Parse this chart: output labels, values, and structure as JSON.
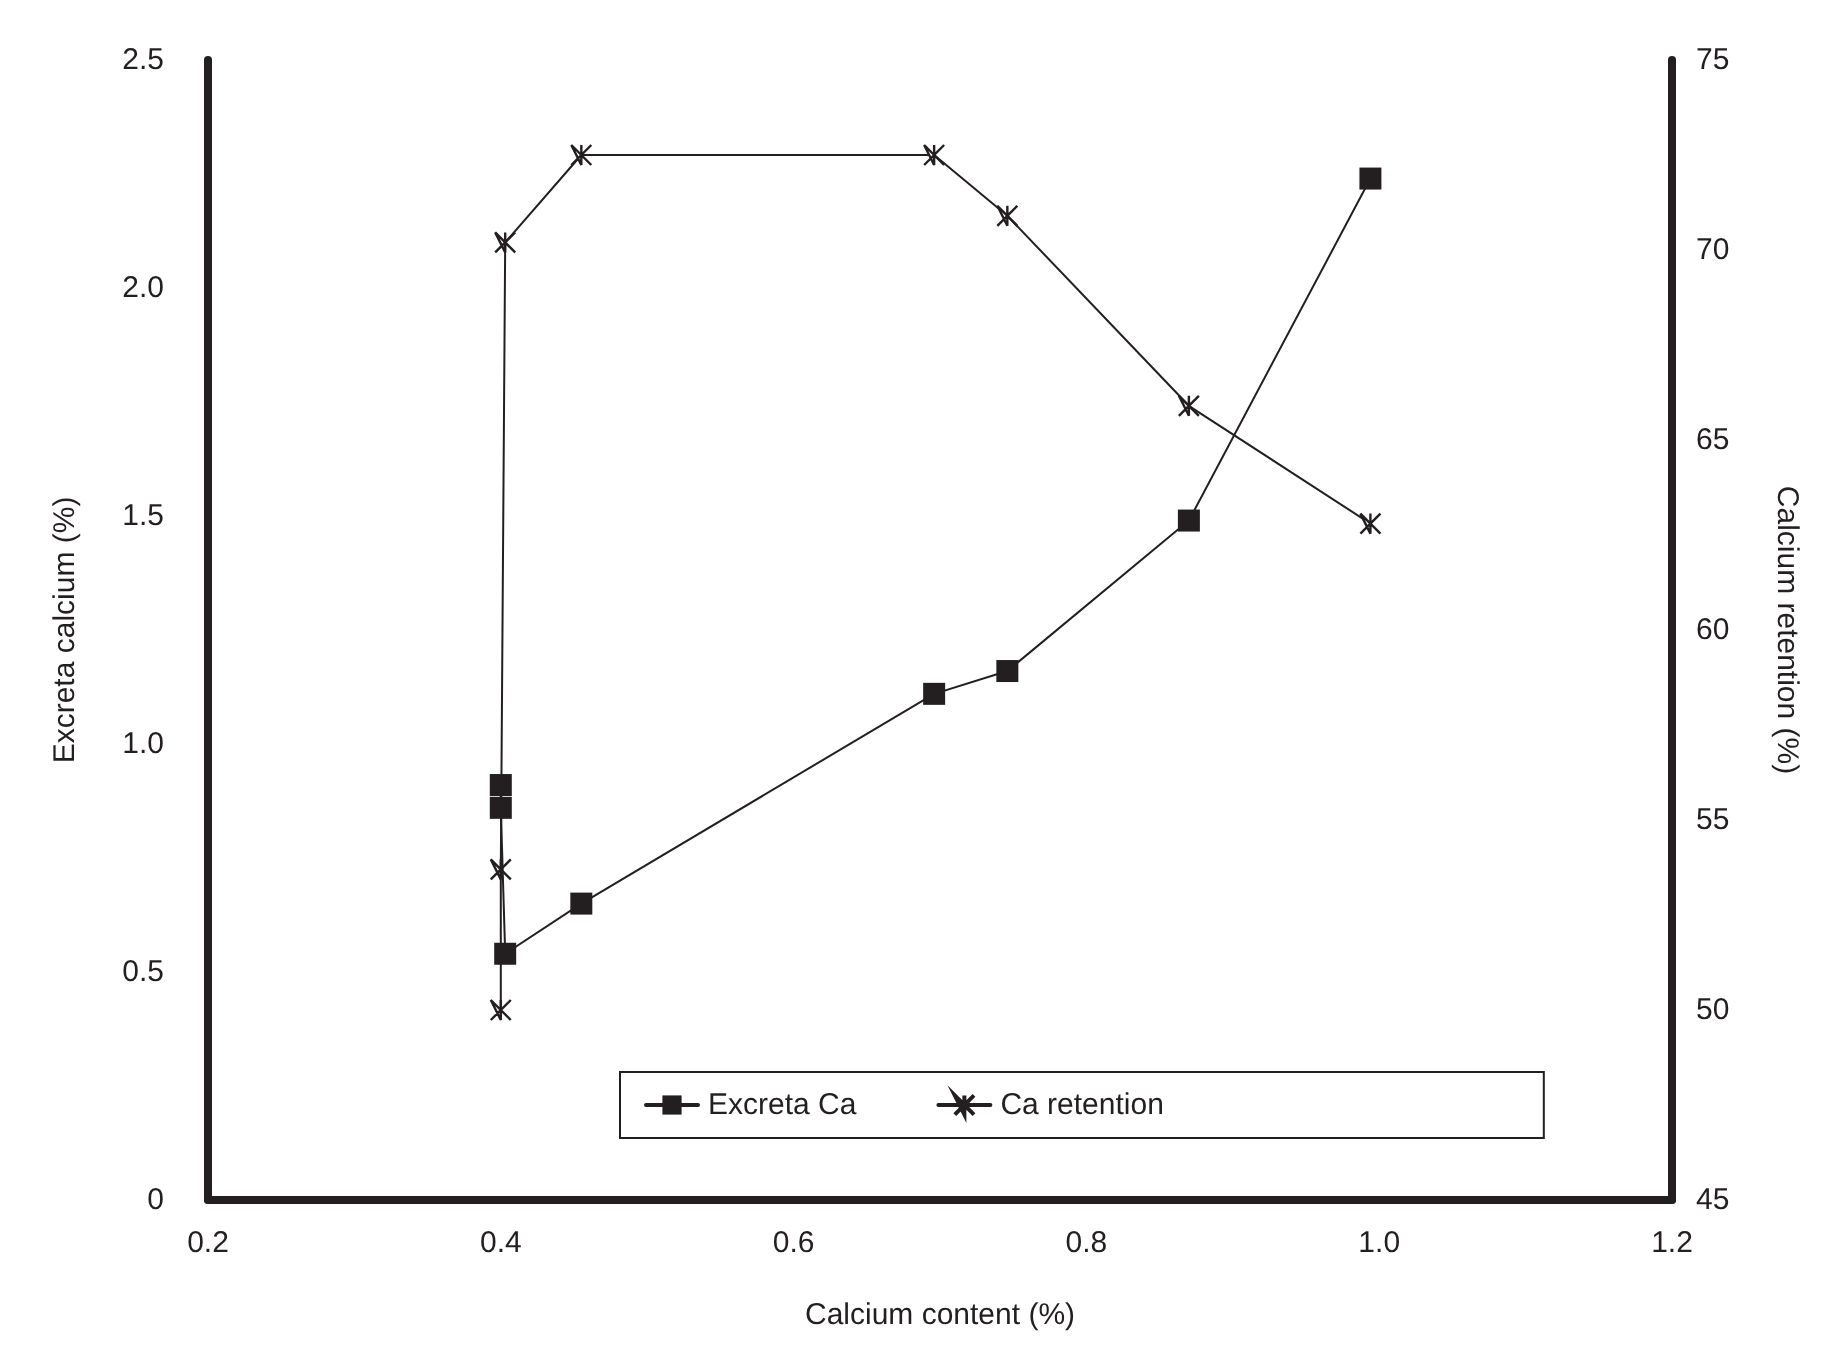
{
  "chart_data": {
    "type": "line",
    "xlabel": "Calcium content (%)",
    "ylabel": "Excreta calcium (%)",
    "y2label": "Calcium retention (%)",
    "xlim": [
      0.2,
      1.2
    ],
    "xticks": [
      0.2,
      0.4,
      0.6,
      0.8,
      {
        "value": 1,
        "label": "1.0"
      },
      1.2
    ],
    "ylim": [
      0,
      2.5
    ],
    "yticks": [
      0,
      0.5,
      {
        "value": 1,
        "label": "1.0"
      },
      1.5,
      {
        "value": 2,
        "label": "2.0"
      },
      2.5
    ],
    "y2lim": [
      45,
      75
    ],
    "y2ticks": [
      45,
      50,
      55,
      60,
      65,
      70,
      75
    ],
    "grid": false,
    "legend": "bottom",
    "line_style": "solid",
    "series": [
      {
        "name": "Excreta Ca",
        "color": "#231f20",
        "marker": "square",
        "x": [
          0.4,
          0.4,
          0.403,
          0.455,
          0.696,
          0.746,
          0.87,
          0.994
        ],
        "values": [
          0.91,
          0.86,
          0.54,
          0.65,
          1.11,
          1.16,
          1.49,
          2.24
        ]
      },
      {
        "name": "Ca retention",
        "color": "#231f20",
        "marker": "cross",
        "axis": "y2",
        "x": [
          0.4,
          0.4,
          0.403,
          0.455,
          0.696,
          0.746,
          0.87,
          0.994
        ],
        "values": [
          50.0,
          53.7,
          70.2,
          72.5,
          72.5,
          70.9,
          65.9,
          62.8
        ]
      }
    ]
  }
}
